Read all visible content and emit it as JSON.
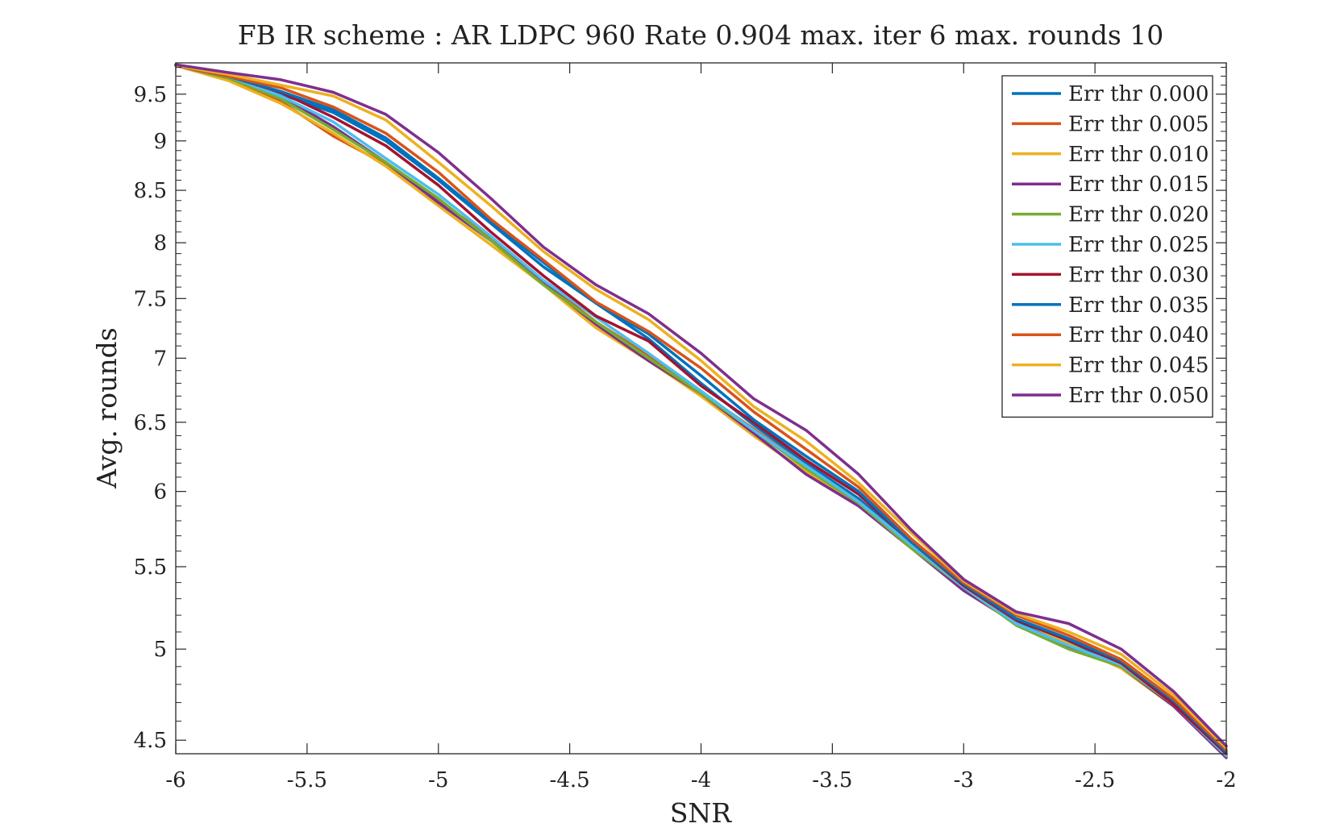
{
  "chart_data": {
    "type": "line",
    "title": "FB IR scheme : AR LDPC 960 Rate 0.904 max. iter 6 max. rounds 10",
    "xlabel": "SNR",
    "ylabel": "Avg. rounds",
    "xlim": [
      -6,
      -2
    ],
    "ylim": [
      4.43,
      9.85
    ],
    "yscale": "log",
    "grid": false,
    "legend_position": "top-right",
    "xticks": [
      -6,
      -5.5,
      -5,
      -4.5,
      -4,
      -3.5,
      -3,
      -2.5,
      -2
    ],
    "xtick_labels": [
      "-6",
      "-5.5",
      "-5",
      "-4.5",
      "-4",
      "-3.5",
      "-3",
      "-2.5",
      "-2"
    ],
    "yticks": [
      4.5,
      5,
      5.5,
      6,
      6.5,
      7,
      7.5,
      8,
      8.5,
      9,
      9.5
    ],
    "ytick_labels": [
      "4.5",
      "5",
      "5.5",
      "6",
      "6.5",
      "7",
      "7.5",
      "8",
      "8.5",
      "9",
      "9.5"
    ],
    "x": [
      -6,
      -5.8,
      -5.6,
      -5.4,
      -5.2,
      -5,
      -4.8,
      -4.6,
      -4.4,
      -4.2,
      -4,
      -3.8,
      -3.6,
      -3.4,
      -3.2,
      -3,
      -2.8,
      -2.6,
      -2.4,
      -2.2,
      -2
    ],
    "series": [
      {
        "name": "Err thr 0.000",
        "color": "#0072BD",
        "values": [
          9.82,
          9.7,
          9.5,
          9.3,
          9.0,
          8.6,
          8.18,
          7.78,
          7.46,
          7.16,
          6.8,
          6.48,
          6.2,
          5.95,
          5.65,
          5.36,
          5.16,
          5.04,
          4.91,
          4.69,
          4.42
        ]
      },
      {
        "name": "Err thr 0.005",
        "color": "#D95319",
        "values": [
          9.82,
          9.68,
          9.42,
          9.05,
          8.76,
          8.4,
          8.05,
          7.65,
          7.3,
          7.02,
          6.73,
          6.45,
          6.18,
          5.93,
          5.64,
          5.38,
          5.18,
          5.06,
          4.93,
          4.7,
          4.43
        ]
      },
      {
        "name": "Err thr 0.010",
        "color": "#EDB120",
        "values": [
          9.82,
          9.65,
          9.4,
          9.08,
          8.74,
          8.35,
          7.98,
          7.62,
          7.25,
          6.98,
          6.7,
          6.4,
          6.14,
          5.91,
          5.62,
          5.37,
          5.18,
          5.03,
          4.89,
          4.68,
          4.42
        ]
      },
      {
        "name": "Err thr 0.015",
        "color": "#7E2F8E",
        "values": [
          9.82,
          9.68,
          9.48,
          9.15,
          8.78,
          8.38,
          8.02,
          7.64,
          7.28,
          6.98,
          6.72,
          6.42,
          6.12,
          5.9,
          5.62,
          5.35,
          5.15,
          5.01,
          4.9,
          4.68,
          4.41
        ]
      },
      {
        "name": "Err thr 0.020",
        "color": "#77AC30",
        "values": [
          9.82,
          9.68,
          9.45,
          9.12,
          8.78,
          8.42,
          8.02,
          7.62,
          7.3,
          7.0,
          6.72,
          6.44,
          6.16,
          5.92,
          5.62,
          5.37,
          5.14,
          5.0,
          4.9,
          4.69,
          4.42
        ]
      },
      {
        "name": "Err thr 0.025",
        "color": "#4DBEEE",
        "values": [
          9.82,
          9.7,
          9.48,
          9.2,
          8.82,
          8.46,
          8.06,
          7.66,
          7.34,
          7.04,
          6.74,
          6.44,
          6.18,
          5.93,
          5.64,
          5.37,
          5.15,
          5.02,
          4.91,
          4.69,
          4.42
        ]
      },
      {
        "name": "Err thr 0.030",
        "color": "#A2142F",
        "values": [
          9.82,
          9.7,
          9.52,
          9.25,
          8.95,
          8.55,
          8.1,
          7.7,
          7.35,
          7.14,
          6.78,
          6.5,
          6.22,
          5.98,
          5.66,
          5.38,
          5.17,
          5.05,
          4.92,
          4.69,
          4.43
        ]
      },
      {
        "name": "Err thr 0.035",
        "color": "#0072BD",
        "values": [
          9.82,
          9.7,
          9.53,
          9.33,
          9.03,
          8.62,
          8.2,
          7.82,
          7.46,
          7.2,
          6.86,
          6.52,
          6.25,
          6.0,
          5.66,
          5.39,
          5.18,
          5.06,
          4.93,
          4.71,
          4.44
        ]
      },
      {
        "name": "Err thr 0.040",
        "color": "#D95319",
        "values": [
          9.82,
          9.7,
          9.57,
          9.36,
          9.08,
          8.68,
          8.22,
          7.84,
          7.47,
          7.22,
          6.92,
          6.58,
          6.3,
          6.03,
          5.68,
          5.4,
          5.2,
          5.08,
          4.94,
          4.72,
          4.45
        ]
      },
      {
        "name": "Err thr 0.045",
        "color": "#EDB120",
        "values": [
          9.82,
          9.72,
          9.6,
          9.48,
          9.22,
          8.78,
          8.35,
          7.92,
          7.58,
          7.32,
          6.98,
          6.62,
          6.36,
          6.06,
          5.72,
          5.41,
          5.21,
          5.1,
          4.97,
          4.74,
          4.46
        ]
      },
      {
        "name": "Err thr 0.050",
        "color": "#7E2F8E",
        "values": [
          9.83,
          9.74,
          9.66,
          9.52,
          9.28,
          8.88,
          8.42,
          7.96,
          7.62,
          7.37,
          7.04,
          6.68,
          6.44,
          6.12,
          5.74,
          5.42,
          5.22,
          5.15,
          5.0,
          4.76,
          4.47
        ]
      }
    ]
  }
}
